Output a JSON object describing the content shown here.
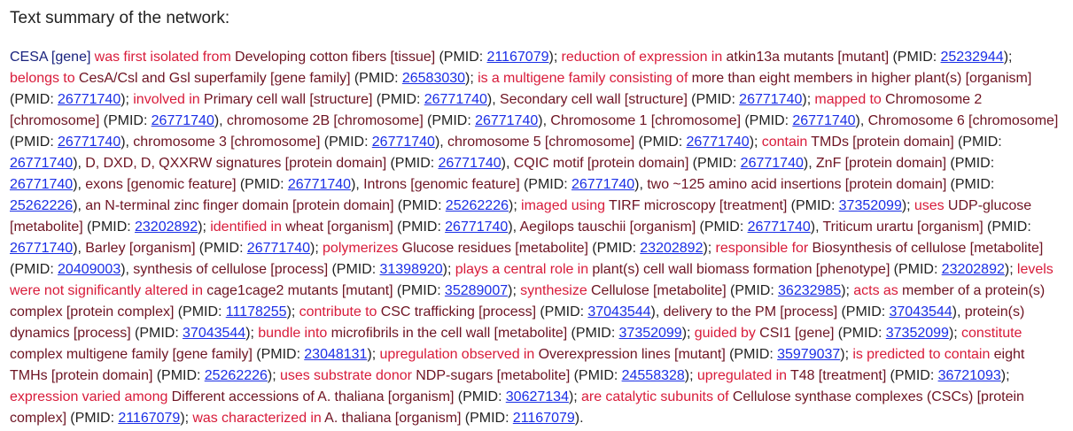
{
  "heading": "Text summary of the network:",
  "colors": {
    "gene": "#1a237e",
    "entity": "#6e1423",
    "relation": "#d81b3a",
    "pmid_link": "#1a2ee6",
    "plain": "#222222"
  },
  "segments": [
    {
      "t": "g",
      "text": "CESA [gene] "
    },
    {
      "t": "r",
      "text": "was first isolated from "
    },
    {
      "t": "e",
      "text": "Developing cotton fibers [tissue] "
    },
    {
      "t": "p",
      "text": "(PMID: "
    },
    {
      "t": "l",
      "text": "21167079"
    },
    {
      "t": "p",
      "text": "); "
    },
    {
      "t": "r",
      "text": "reduction of expression in "
    },
    {
      "t": "e",
      "text": "atkin13a mutants [mutant] "
    },
    {
      "t": "p",
      "text": "(PMID: "
    },
    {
      "t": "l",
      "text": "25232944"
    },
    {
      "t": "p",
      "text": "); "
    },
    {
      "t": "r",
      "text": "belongs to "
    },
    {
      "t": "e",
      "text": "CesA/Csl and Gsl superfamily [gene family] "
    },
    {
      "t": "p",
      "text": "(PMID: "
    },
    {
      "t": "l",
      "text": "26583030"
    },
    {
      "t": "p",
      "text": "); "
    },
    {
      "t": "r",
      "text": "is a multigene family consisting of "
    },
    {
      "t": "e",
      "text": "more than eight members in higher plant(s) [organism] "
    },
    {
      "t": "p",
      "text": "(PMID: "
    },
    {
      "t": "l",
      "text": "26771740"
    },
    {
      "t": "p",
      "text": "); "
    },
    {
      "t": "r",
      "text": "involved in "
    },
    {
      "t": "e",
      "text": "Primary cell wall [structure] "
    },
    {
      "t": "p",
      "text": "(PMID: "
    },
    {
      "t": "l",
      "text": "26771740"
    },
    {
      "t": "p",
      "text": "), "
    },
    {
      "t": "e",
      "text": "Secondary cell wall [structure] "
    },
    {
      "t": "p",
      "text": "(PMID: "
    },
    {
      "t": "l",
      "text": "26771740"
    },
    {
      "t": "p",
      "text": "); "
    },
    {
      "t": "r",
      "text": "mapped to "
    },
    {
      "t": "e",
      "text": "Chromosome 2 [chromosome] "
    },
    {
      "t": "p",
      "text": "(PMID: "
    },
    {
      "t": "l",
      "text": "26771740"
    },
    {
      "t": "p",
      "text": "), "
    },
    {
      "t": "e",
      "text": "chromosome 2B [chromosome] "
    },
    {
      "t": "p",
      "text": "(PMID: "
    },
    {
      "t": "l",
      "text": "26771740"
    },
    {
      "t": "p",
      "text": "), "
    },
    {
      "t": "e",
      "text": "Chromosome 1 [chromosome] "
    },
    {
      "t": "p",
      "text": "(PMID: "
    },
    {
      "t": "l",
      "text": "26771740"
    },
    {
      "t": "p",
      "text": "), "
    },
    {
      "t": "e",
      "text": "Chromosome 6 [chromosome] "
    },
    {
      "t": "p",
      "text": "(PMID: "
    },
    {
      "t": "l",
      "text": "26771740"
    },
    {
      "t": "p",
      "text": "), "
    },
    {
      "t": "e",
      "text": "chromosome 3 [chromosome] "
    },
    {
      "t": "p",
      "text": "(PMID: "
    },
    {
      "t": "l",
      "text": "26771740"
    },
    {
      "t": "p",
      "text": "), "
    },
    {
      "t": "e",
      "text": "chromosome 5 [chromosome] "
    },
    {
      "t": "p",
      "text": "(PMID: "
    },
    {
      "t": "l",
      "text": "26771740"
    },
    {
      "t": "p",
      "text": "); "
    },
    {
      "t": "r",
      "text": "contain "
    },
    {
      "t": "e",
      "text": "TMDs [protein domain] "
    },
    {
      "t": "p",
      "text": "(PMID: "
    },
    {
      "t": "l",
      "text": "26771740"
    },
    {
      "t": "p",
      "text": "), "
    },
    {
      "t": "e",
      "text": "D, DXD, D, QXXRW signatures [protein domain] "
    },
    {
      "t": "p",
      "text": "(PMID: "
    },
    {
      "t": "l",
      "text": "26771740"
    },
    {
      "t": "p",
      "text": "), "
    },
    {
      "t": "e",
      "text": "CQIC motif [protein domain] "
    },
    {
      "t": "p",
      "text": "(PMID: "
    },
    {
      "t": "l",
      "text": "26771740"
    },
    {
      "t": "p",
      "text": "), "
    },
    {
      "t": "e",
      "text": "ZnF [protein domain] "
    },
    {
      "t": "p",
      "text": "(PMID: "
    },
    {
      "t": "l",
      "text": "26771740"
    },
    {
      "t": "p",
      "text": "), "
    },
    {
      "t": "e",
      "text": "exons [genomic feature] "
    },
    {
      "t": "p",
      "text": "(PMID: "
    },
    {
      "t": "l",
      "text": "26771740"
    },
    {
      "t": "p",
      "text": "), "
    },
    {
      "t": "e",
      "text": "Introns [genomic feature] "
    },
    {
      "t": "p",
      "text": "(PMID: "
    },
    {
      "t": "l",
      "text": "26771740"
    },
    {
      "t": "p",
      "text": "), "
    },
    {
      "t": "e",
      "text": "two ~125 amino acid insertions [protein domain] "
    },
    {
      "t": "p",
      "text": "(PMID: "
    },
    {
      "t": "l",
      "text": "25262226"
    },
    {
      "t": "p",
      "text": "), "
    },
    {
      "t": "e",
      "text": "an N-terminal zinc finger domain [protein domain] "
    },
    {
      "t": "p",
      "text": "(PMID: "
    },
    {
      "t": "l",
      "text": "25262226"
    },
    {
      "t": "p",
      "text": "); "
    },
    {
      "t": "r",
      "text": "imaged using "
    },
    {
      "t": "e",
      "text": "TIRF microscopy [treatment] "
    },
    {
      "t": "p",
      "text": "(PMID: "
    },
    {
      "t": "l",
      "text": "37352099"
    },
    {
      "t": "p",
      "text": "); "
    },
    {
      "t": "r",
      "text": "uses "
    },
    {
      "t": "e",
      "text": "UDP-glucose [metabolite] "
    },
    {
      "t": "p",
      "text": "(PMID: "
    },
    {
      "t": "l",
      "text": "23202892"
    },
    {
      "t": "p",
      "text": "); "
    },
    {
      "t": "r",
      "text": "identified in "
    },
    {
      "t": "e",
      "text": "wheat [organism] "
    },
    {
      "t": "p",
      "text": "(PMID: "
    },
    {
      "t": "l",
      "text": "26771740"
    },
    {
      "t": "p",
      "text": "), "
    },
    {
      "t": "e",
      "text": "Aegilops tauschii [organism] "
    },
    {
      "t": "p",
      "text": "(PMID: "
    },
    {
      "t": "l",
      "text": "26771740"
    },
    {
      "t": "p",
      "text": "), "
    },
    {
      "t": "e",
      "text": "Triticum urartu [organism] "
    },
    {
      "t": "p",
      "text": "(PMID: "
    },
    {
      "t": "l",
      "text": "26771740"
    },
    {
      "t": "p",
      "text": "), "
    },
    {
      "t": "e",
      "text": "Barley [organism] "
    },
    {
      "t": "p",
      "text": "(PMID: "
    },
    {
      "t": "l",
      "text": "26771740"
    },
    {
      "t": "p",
      "text": "); "
    },
    {
      "t": "r",
      "text": "polymerizes "
    },
    {
      "t": "e",
      "text": "Glucose residues [metabolite] "
    },
    {
      "t": "p",
      "text": "(PMID: "
    },
    {
      "t": "l",
      "text": "23202892"
    },
    {
      "t": "p",
      "text": "); "
    },
    {
      "t": "r",
      "text": "responsible for "
    },
    {
      "t": "e",
      "text": "Biosynthesis of cellulose [metabolite] "
    },
    {
      "t": "p",
      "text": "(PMID: "
    },
    {
      "t": "l",
      "text": "20409003"
    },
    {
      "t": "p",
      "text": "), "
    },
    {
      "t": "e",
      "text": "synthesis of cellulose [process] "
    },
    {
      "t": "p",
      "text": "(PMID: "
    },
    {
      "t": "l",
      "text": "31398920"
    },
    {
      "t": "p",
      "text": "); "
    },
    {
      "t": "r",
      "text": "plays a central role in "
    },
    {
      "t": "e",
      "text": "plant(s) cell wall biomass formation [phenotype] "
    },
    {
      "t": "p",
      "text": "(PMID: "
    },
    {
      "t": "l",
      "text": "23202892"
    },
    {
      "t": "p",
      "text": "); "
    },
    {
      "t": "r",
      "text": "levels were not significantly altered in "
    },
    {
      "t": "e",
      "text": "cage1cage2 mutants [mutant] "
    },
    {
      "t": "p",
      "text": "(PMID: "
    },
    {
      "t": "l",
      "text": "35289007"
    },
    {
      "t": "p",
      "text": "); "
    },
    {
      "t": "r",
      "text": "synthesize "
    },
    {
      "t": "e",
      "text": "Cellulose [metabolite] "
    },
    {
      "t": "p",
      "text": "(PMID: "
    },
    {
      "t": "l",
      "text": "36232985"
    },
    {
      "t": "p",
      "text": "); "
    },
    {
      "t": "r",
      "text": "acts as "
    },
    {
      "t": "e",
      "text": "member of a protein(s) complex [protein complex] "
    },
    {
      "t": "p",
      "text": "(PMID: "
    },
    {
      "t": "l",
      "text": "11178255"
    },
    {
      "t": "p",
      "text": "); "
    },
    {
      "t": "r",
      "text": "contribute to "
    },
    {
      "t": "e",
      "text": "CSC trafficking [process] "
    },
    {
      "t": "p",
      "text": "(PMID: "
    },
    {
      "t": "l",
      "text": "37043544"
    },
    {
      "t": "p",
      "text": "), "
    },
    {
      "t": "e",
      "text": "delivery to the PM [process] "
    },
    {
      "t": "p",
      "text": "(PMID: "
    },
    {
      "t": "l",
      "text": "37043544"
    },
    {
      "t": "p",
      "text": "), "
    },
    {
      "t": "e",
      "text": "protein(s) dynamics [process] "
    },
    {
      "t": "p",
      "text": "(PMID: "
    },
    {
      "t": "l",
      "text": "37043544"
    },
    {
      "t": "p",
      "text": "); "
    },
    {
      "t": "r",
      "text": "bundle into "
    },
    {
      "t": "e",
      "text": "microfibrils in the cell wall [metabolite] "
    },
    {
      "t": "p",
      "text": "(PMID: "
    },
    {
      "t": "l",
      "text": "37352099"
    },
    {
      "t": "p",
      "text": "); "
    },
    {
      "t": "r",
      "text": "guided by "
    },
    {
      "t": "e",
      "text": "CSI1 [gene] "
    },
    {
      "t": "p",
      "text": "(PMID: "
    },
    {
      "t": "l",
      "text": "37352099"
    },
    {
      "t": "p",
      "text": "); "
    },
    {
      "t": "r",
      "text": "constitute "
    },
    {
      "t": "e",
      "text": "complex multigene family [gene family] "
    },
    {
      "t": "p",
      "text": "(PMID: "
    },
    {
      "t": "l",
      "text": "23048131"
    },
    {
      "t": "p",
      "text": "); "
    },
    {
      "t": "r",
      "text": "upregulation observed in "
    },
    {
      "t": "e",
      "text": "Overexpression lines [mutant] "
    },
    {
      "t": "p",
      "text": "(PMID: "
    },
    {
      "t": "l",
      "text": "35979037"
    },
    {
      "t": "p",
      "text": "); "
    },
    {
      "t": "r",
      "text": "is predicted to contain "
    },
    {
      "t": "e",
      "text": "eight TMHs [protein domain] "
    },
    {
      "t": "p",
      "text": "(PMID: "
    },
    {
      "t": "l",
      "text": "25262226"
    },
    {
      "t": "p",
      "text": "); "
    },
    {
      "t": "r",
      "text": "uses substrate donor "
    },
    {
      "t": "e",
      "text": "NDP-sugars [metabolite] "
    },
    {
      "t": "p",
      "text": "(PMID: "
    },
    {
      "t": "l",
      "text": "24558328"
    },
    {
      "t": "p",
      "text": "); "
    },
    {
      "t": "r",
      "text": "upregulated in "
    },
    {
      "t": "e",
      "text": "T48 [treatment] "
    },
    {
      "t": "p",
      "text": "(PMID: "
    },
    {
      "t": "l",
      "text": "36721093"
    },
    {
      "t": "p",
      "text": "); "
    },
    {
      "t": "r",
      "text": "expression varied among "
    },
    {
      "t": "e",
      "text": "Different accessions of A. thaliana [organism] "
    },
    {
      "t": "p",
      "text": "(PMID: "
    },
    {
      "t": "l",
      "text": "30627134"
    },
    {
      "t": "p",
      "text": "); "
    },
    {
      "t": "r",
      "text": "are catalytic subunits of "
    },
    {
      "t": "e",
      "text": "Cellulose synthase complexes (CSCs) [protein complex] "
    },
    {
      "t": "p",
      "text": "(PMID: "
    },
    {
      "t": "l",
      "text": "21167079"
    },
    {
      "t": "p",
      "text": "); "
    },
    {
      "t": "r",
      "text": "was characterized in "
    },
    {
      "t": "e",
      "text": "A. thaliana [organism] "
    },
    {
      "t": "p",
      "text": "(PMID: "
    },
    {
      "t": "l",
      "text": "21167079"
    },
    {
      "t": "p",
      "text": ")."
    }
  ]
}
